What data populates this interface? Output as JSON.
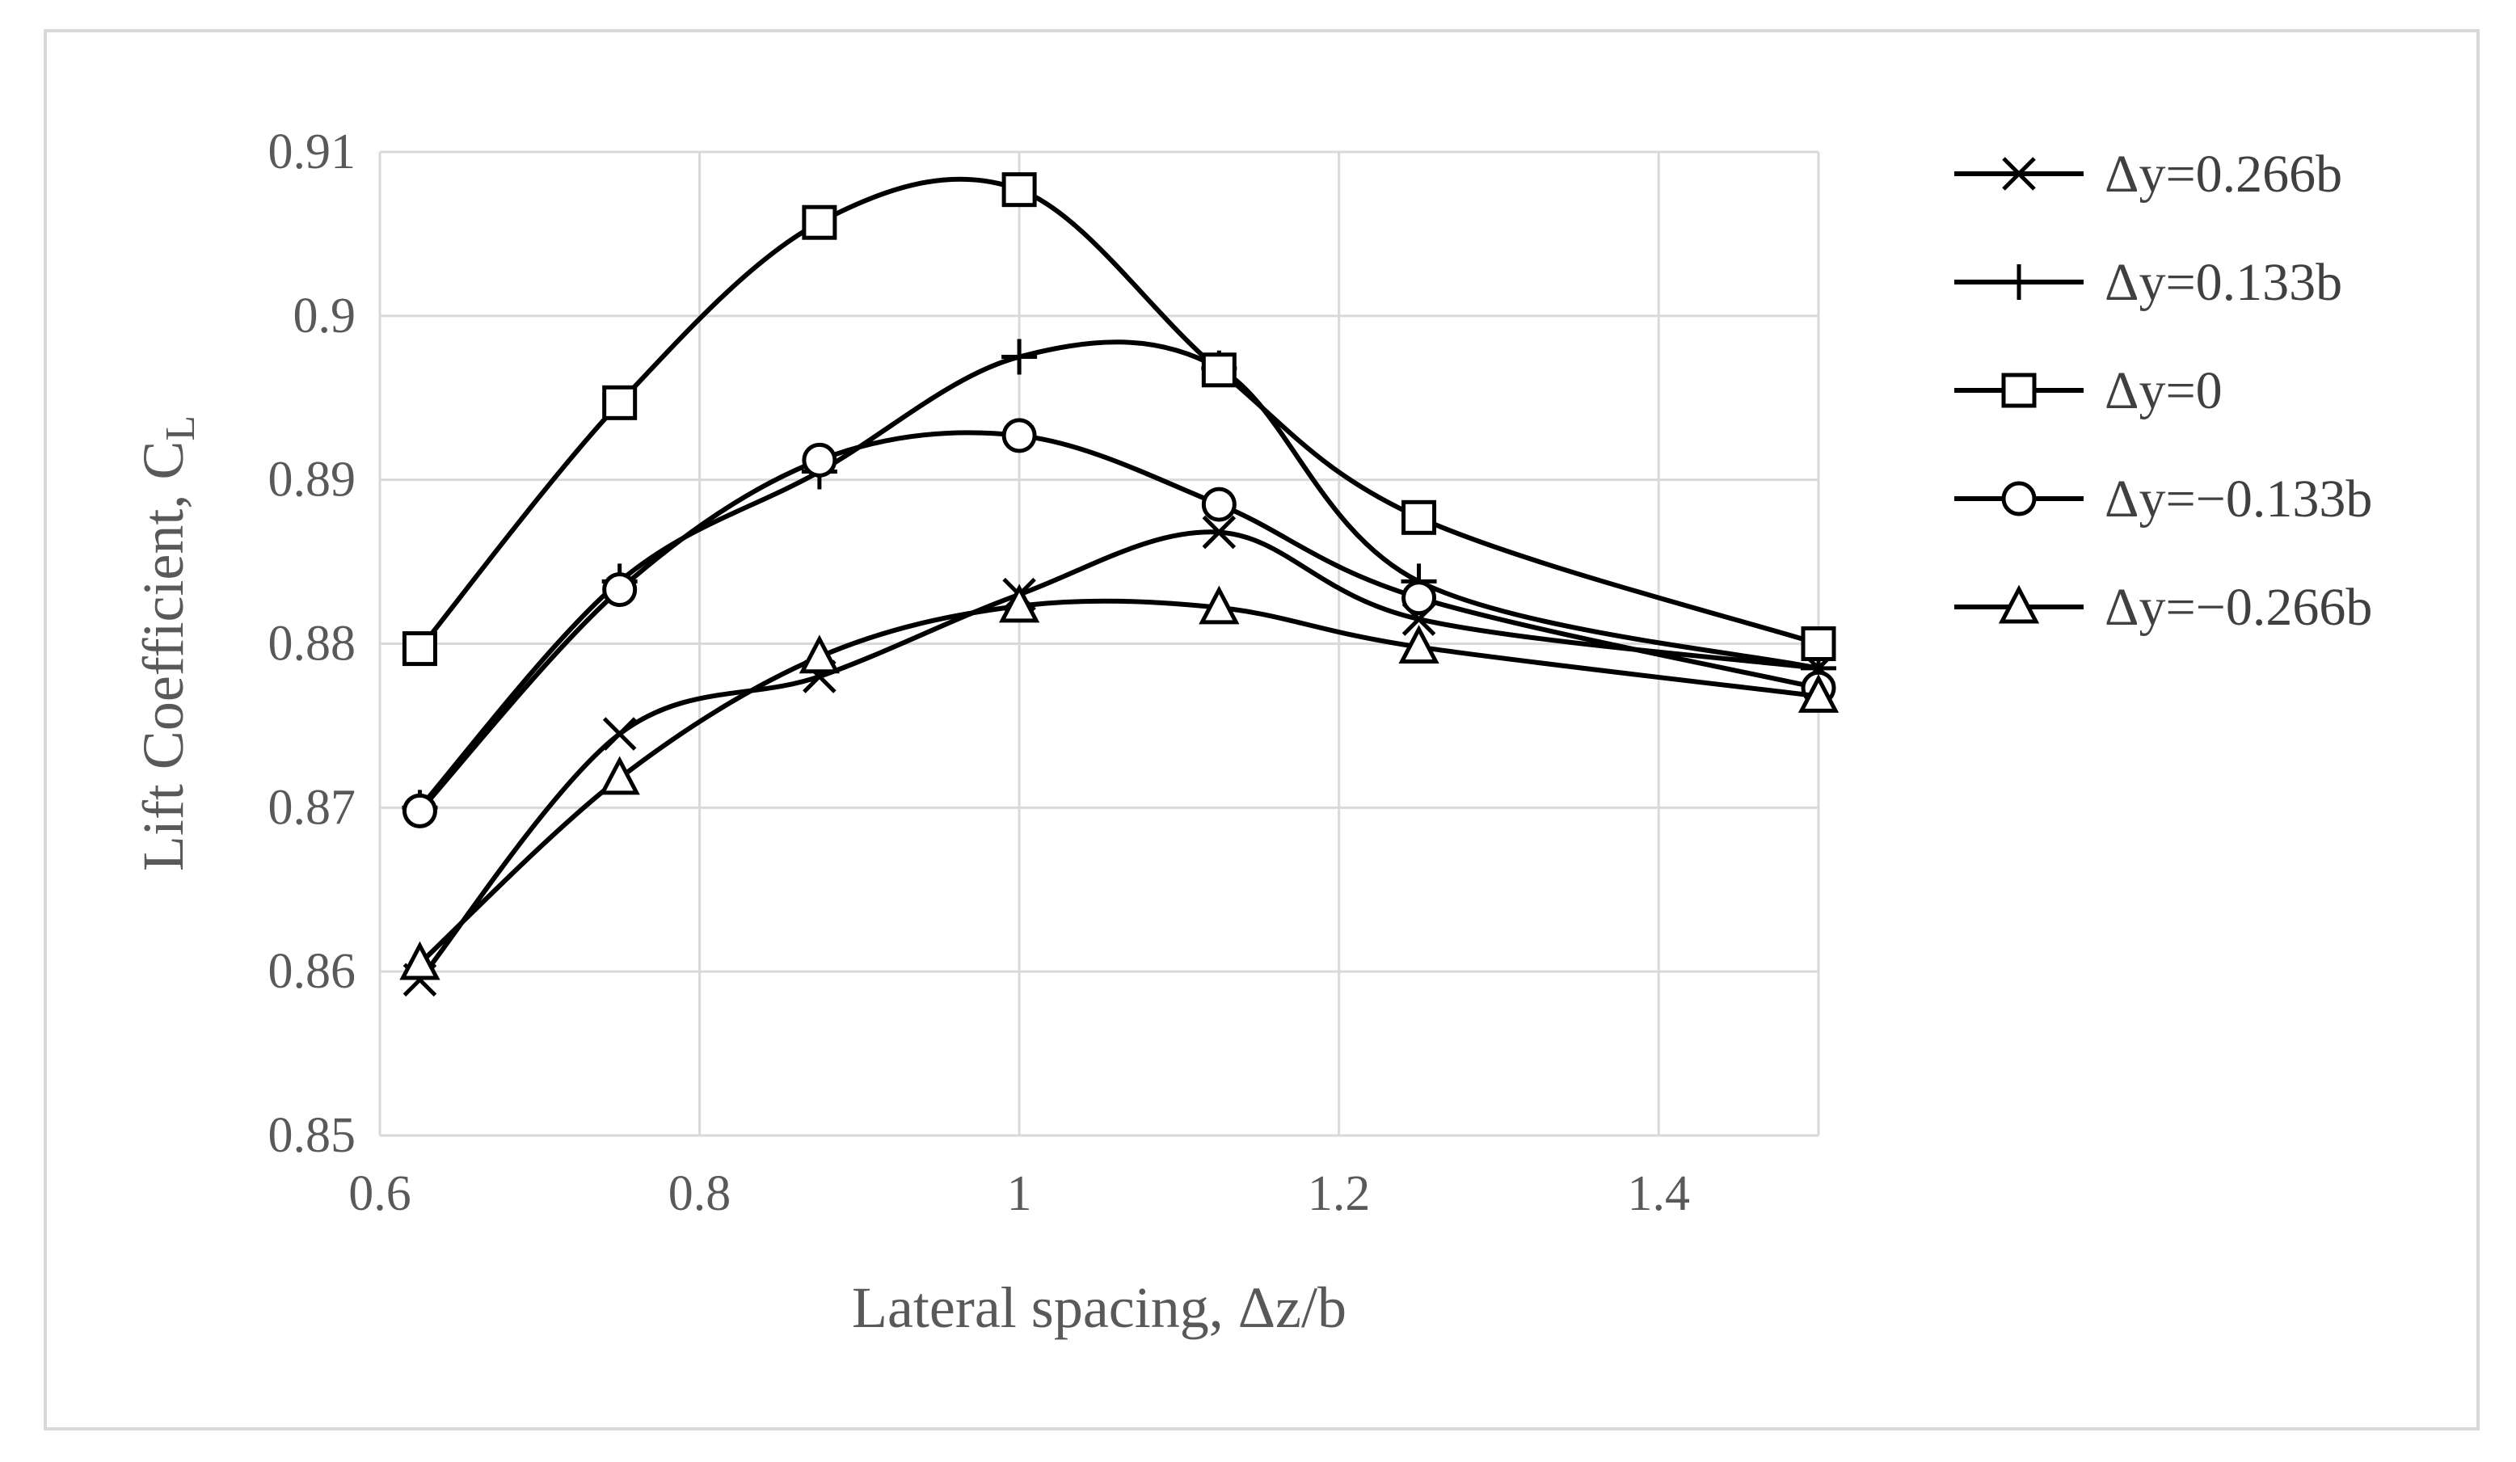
{
  "chart_data": {
    "type": "line",
    "title": "",
    "xlabel": "Lateral spacing, Δz/b",
    "ylabel_main": "Lift Coefficient, C",
    "ylabel_sub": "L",
    "xlim": [
      0.6,
      1.5
    ],
    "ylim": [
      0.85,
      0.91
    ],
    "xticks": [
      0.6,
      0.8,
      1.0,
      1.2,
      1.4
    ],
    "xtick_labels": [
      "0.6",
      "0.8",
      "1",
      "1.2",
      "1.4"
    ],
    "yticks": [
      0.85,
      0.86,
      0.87,
      0.88,
      0.89,
      0.9,
      0.91
    ],
    "ytick_labels": [
      "0.85",
      "0.86",
      "0.87",
      "0.88",
      "0.89",
      "0.9",
      "0.91"
    ],
    "grid": true,
    "legend_position": "right",
    "line_color": "#000000",
    "grid_color": "#d9d9d9",
    "x": [
      0.625,
      0.75,
      0.875,
      1.0,
      1.125,
      1.25,
      1.5
    ],
    "series": [
      {
        "name": "Δy=0.266b",
        "marker": "x",
        "values": [
          0.8595,
          0.8745,
          0.878,
          0.883,
          0.8868,
          0.8815,
          0.8785
        ]
      },
      {
        "name": "Δy=0.133b",
        "marker": "plus",
        "values": [
          0.87,
          0.8838,
          0.8905,
          0.8975,
          0.8968,
          0.8838,
          0.8785
        ]
      },
      {
        "name": "Δy=0",
        "marker": "square",
        "values": [
          0.8797,
          0.8947,
          0.9057,
          0.9077,
          0.8967,
          0.8877,
          0.88
        ]
      },
      {
        "name": "Δy=−0.133b",
        "marker": "circle",
        "values": [
          0.8698,
          0.8833,
          0.8912,
          0.8927,
          0.8885,
          0.8828,
          0.8773
        ]
      },
      {
        "name": "Δy=−0.266b",
        "marker": "triangle",
        "values": [
          0.8605,
          0.8718,
          0.8792,
          0.8823,
          0.8822,
          0.8798,
          0.8768
        ]
      }
    ]
  }
}
